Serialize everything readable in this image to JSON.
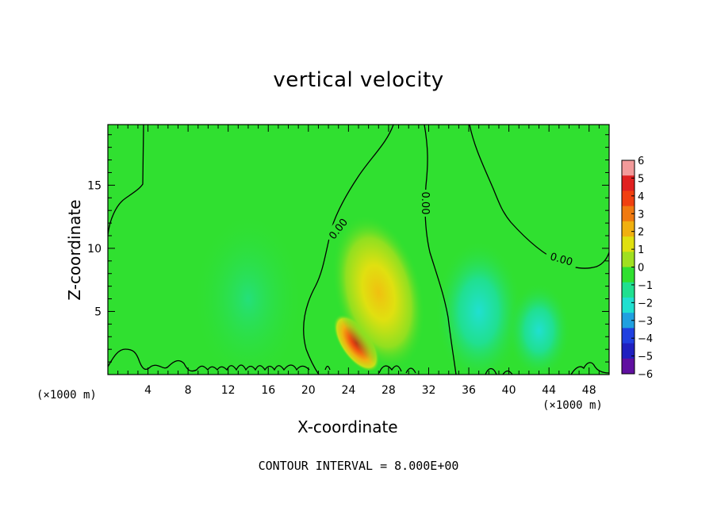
{
  "chart_data": {
    "type": "heatmap",
    "title": "vertical velocity",
    "xlabel": "X-coordinate",
    "ylabel": "Z-coordinate",
    "x_unit_label": "(×1000 m)",
    "x_ticks": [
      4,
      8,
      12,
      16,
      20,
      24,
      28,
      32,
      36,
      40,
      44,
      48
    ],
    "y_ticks": [
      5,
      10,
      15
    ],
    "xlim": [
      0,
      50
    ],
    "ylim": [
      0,
      19.8
    ],
    "colorbar": {
      "ticks": [
        "6",
        "5",
        "4",
        "3",
        "2",
        "1",
        "0",
        "−1",
        "−2",
        "−3",
        "−4",
        "−5",
        "−6"
      ],
      "range": [
        -6,
        6
      ],
      "colors": [
        "#f29a9a",
        "#e02020",
        "#f04010",
        "#f07a10",
        "#f0b010",
        "#e0e010",
        "#a0e020",
        "#30e030",
        "#20e090",
        "#20e0d0",
        "#20a0e0",
        "#2040e0",
        "#2020c0",
        "#6010a0"
      ]
    },
    "contour_label_text": "0.00",
    "contour_interval": "CONTOUR INTERVAL = 8.000E+00",
    "features": [
      {
        "kind": "updraft-core",
        "x": 24.8,
        "z": 2.5,
        "value": 5.5
      },
      {
        "kind": "updraft",
        "x": 27.0,
        "z": 6.5,
        "value": 2.0
      },
      {
        "kind": "downdraft",
        "x": 37.0,
        "z": 5.0,
        "value": -2.0
      },
      {
        "kind": "downdraft",
        "x": 43.0,
        "z": 3.5,
        "value": -1.0
      },
      {
        "kind": "downdraft",
        "x": 14.0,
        "z": 6.0,
        "value": -0.5
      }
    ]
  }
}
